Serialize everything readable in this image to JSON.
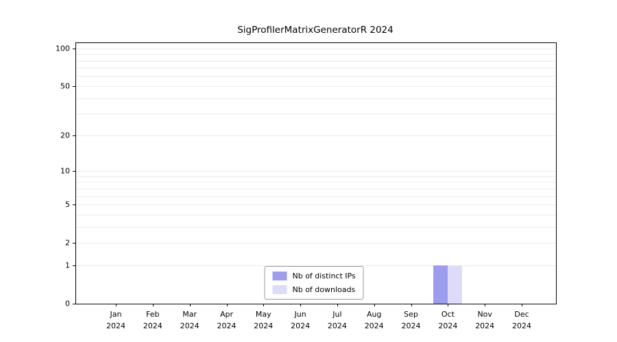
{
  "title": "SigProfilerMatrixGeneratorR 2024",
  "chart_data": {
    "type": "bar",
    "title": "SigProfilerMatrixGeneratorR 2024",
    "categories": [
      "Jan",
      "Feb",
      "Mar",
      "Apr",
      "May",
      "Jun",
      "Jul",
      "Aug",
      "Sep",
      "Oct",
      "Nov",
      "Dec"
    ],
    "year_label": "2024",
    "series": [
      {
        "name": "Nb of distinct IPs",
        "color": "#9d9df0",
        "values": [
          0,
          0,
          0,
          0,
          0,
          0,
          0,
          0,
          0,
          1,
          0,
          0
        ]
      },
      {
        "name": "Nb of downloads",
        "color": "#dcdcf8",
        "values": [
          0,
          0,
          0,
          0,
          0,
          0,
          0,
          0,
          0,
          1,
          0,
          0
        ]
      }
    ],
    "yticks": [
      0,
      1,
      2,
      5,
      10,
      20,
      50,
      100
    ],
    "scale": "log1p",
    "ylim": [
      0,
      110
    ],
    "ymax": 110,
    "grid": true,
    "legend_position": "bottom-center"
  }
}
